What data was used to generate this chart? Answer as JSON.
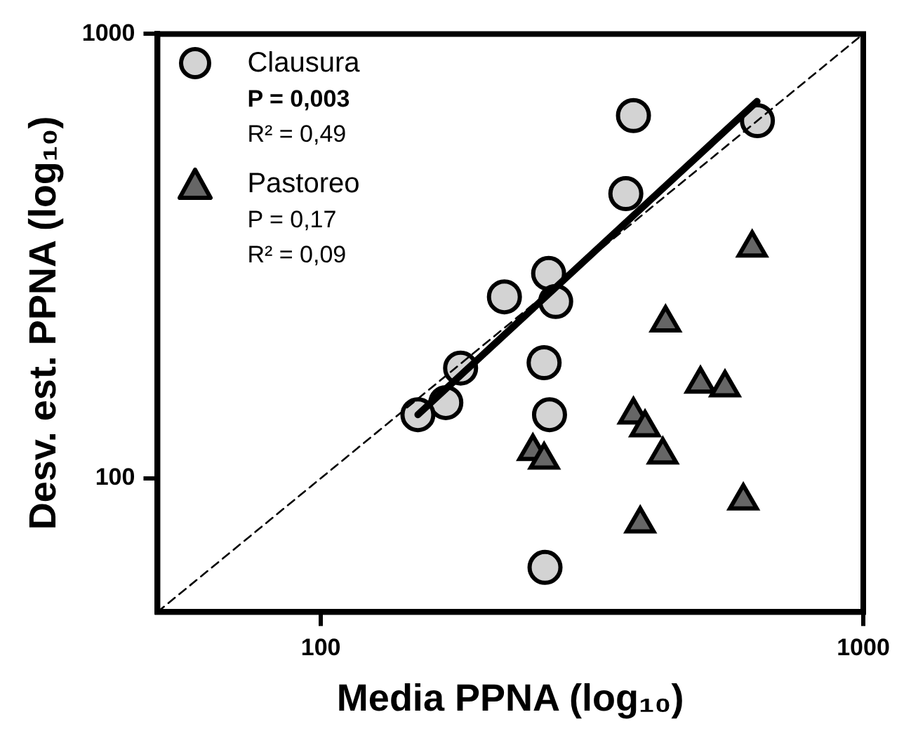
{
  "chart_data": {
    "type": "scatter",
    "xlabel": "Media PPNA (log₁₀)",
    "ylabel": "Desv. est. PPNA (log₁₀)",
    "log": "xy",
    "xlim": [
      50,
      1000
    ],
    "ylim": [
      50,
      1000
    ],
    "xticks": [
      100,
      1000
    ],
    "yticks": [
      100,
      1000
    ],
    "grid": false,
    "legend": "top left",
    "annotations": [
      "P = 0,003",
      "R² = 0,49",
      "P = 0,17",
      "R² = 0,09"
    ],
    "series": [
      {
        "name": "Clausura",
        "type": "scatter",
        "marker": "circle",
        "color": "#d3d3d3",
        "x": [
          377,
          638,
          365,
          263,
          218,
          271,
          258,
          264,
          259,
          181,
          170,
          151
        ],
        "values": [
          655,
          638,
          437,
          289,
          256,
          250,
          182,
          139,
          63,
          177,
          148,
          139
        ]
      },
      {
        "name": "Pastoreo",
        "type": "scatter",
        "marker": "triangle",
        "color": "#666666",
        "x": [
          624,
          432,
          246,
          258,
          377,
          396,
          427,
          501,
          556,
          601,
          388
        ],
        "values": [
          330,
          224,
          115,
          110,
          139,
          130,
          113,
          163,
          160,
          89,
          79
        ]
      },
      {
        "type": "line",
        "color": "#000000",
        "line_style": "solid",
        "marker": "none",
        "x": [
          151,
          637
        ],
        "values": [
          139,
          705
        ]
      },
      {
        "type": "line",
        "color": "#000000",
        "line_style": "dashed",
        "marker": "none",
        "x": [
          50,
          1000
        ],
        "values": [
          50,
          1000
        ]
      }
    ]
  }
}
